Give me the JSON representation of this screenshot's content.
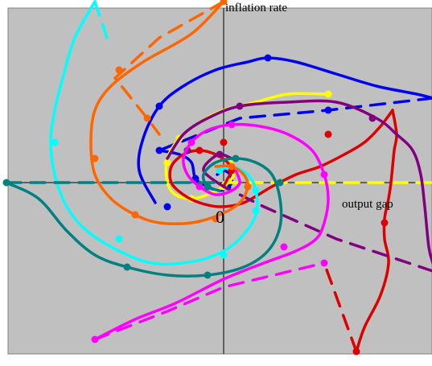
{
  "chart_data": {
    "type": "line",
    "xlabel": "output gap",
    "ylabel": "inflation rate",
    "origin_label": "0",
    "xlim": [
      -270,
      260
    ],
    "ylim": [
      -195,
      225
    ],
    "grid": false,
    "legend": "none",
    "background": "#c0c0c0",
    "series": [
      {
        "color": "#0000ee",
        "solid": [
          [
            -85,
            -25
          ],
          [
            -105,
            15
          ],
          [
            -100,
            55
          ],
          [
            -80,
            95
          ],
          [
            -50,
            120
          ],
          [
            -10,
            140
          ],
          [
            30,
            150
          ],
          [
            55,
            155
          ],
          [
            90,
            150
          ],
          [
            140,
            135
          ],
          [
            190,
            120
          ],
          [
            240,
            110
          ],
          [
            260,
            105
          ]
        ],
        "dashed": [
          [
            260,
            105
          ],
          [
            130,
            90
          ],
          [
            20,
            80
          ],
          [
            -80,
            40
          ]
        ],
        "spiral": [
          [
            -80,
            40
          ],
          [
            -55,
            35
          ],
          [
            -40,
            25
          ],
          [
            -35,
            5
          ],
          [
            -20,
            -5
          ],
          [
            -5,
            -10
          ],
          [
            5,
            -5
          ],
          [
            10,
            0
          ],
          [
            8,
            10
          ],
          [
            0,
            15
          ],
          [
            -8,
            10
          ]
        ],
        "markers": [
          [
            -80,
            95
          ],
          [
            55,
            155
          ],
          [
            130,
            90
          ],
          [
            -80,
            40
          ],
          [
            -35,
            5
          ],
          [
            -20,
            -5
          ],
          [
            5,
            -5
          ],
          [
            -70,
            -30
          ]
        ]
      },
      {
        "color": "#ffff00",
        "solid": [
          [
            130,
            110
          ],
          [
            80,
            110
          ],
          [
            40,
            100
          ],
          [
            0,
            90
          ],
          [
            -30,
            75
          ],
          [
            -55,
            55
          ],
          [
            -70,
            30
          ],
          [
            -70,
            0
          ],
          [
            -60,
            -15
          ],
          [
            -40,
            -20
          ],
          [
            -20,
            -15
          ],
          [
            0,
            -5
          ],
          [
            10,
            5
          ],
          [
            15,
            15
          ]
        ],
        "dashed": [
          [
            0,
            0
          ],
          [
            260,
            0
          ]
        ],
        "spiral": [
          [
            15,
            15
          ],
          [
            10,
            25
          ],
          [
            0,
            30
          ],
          [
            -10,
            25
          ]
        ],
        "markers": [
          [
            130,
            110
          ],
          [
            -55,
            55
          ],
          [
            -70,
            25
          ],
          [
            -40,
            -20
          ],
          [
            0,
            -5
          ]
        ]
      },
      {
        "color": "#dd0000",
        "solid": [
          [
            0,
            -5
          ],
          [
            5,
            5
          ],
          [
            10,
            15
          ],
          [
            5,
            25
          ],
          [
            -10,
            35
          ],
          [
            -30,
            40
          ],
          [
            -50,
            35
          ],
          [
            -65,
            20
          ],
          [
            -65,
            0
          ],
          [
            -50,
            -15
          ],
          [
            -30,
            -25
          ],
          [
            -5,
            -30
          ],
          [
            25,
            -25
          ],
          [
            60,
            -5
          ],
          [
            90,
            10
          ],
          [
            120,
            20
          ],
          [
            150,
            35
          ],
          [
            175,
            50
          ],
          [
            195,
            70
          ],
          [
            210,
            90
          ]
        ],
        "tail": [
          [
            210,
            90
          ],
          [
            215,
            60
          ],
          [
            212,
            40
          ],
          [
            210,
            20
          ],
          [
            208,
            0
          ],
          [
            205,
            -20
          ],
          [
            200,
            -45
          ],
          [
            200,
            -70
          ],
          [
            205,
            -100
          ],
          [
            195,
            -140
          ],
          [
            175,
            -180
          ],
          [
            165,
            -210
          ]
        ],
        "dashed": [
          [
            165,
            -210
          ],
          [
            125,
            -100
          ]
        ],
        "markers": [
          [
            0,
            50
          ],
          [
            130,
            60
          ],
          [
            200,
            -50
          ],
          [
            165,
            -210
          ],
          [
            10,
            15
          ],
          [
            -30,
            40
          ]
        ]
      },
      {
        "color": "#800080",
        "solid": [
          [
            -70,
            30
          ],
          [
            -50,
            60
          ],
          [
            -20,
            80
          ],
          [
            20,
            95
          ],
          [
            80,
            100
          ],
          [
            140,
            100
          ],
          [
            190,
            80
          ],
          [
            215,
            60
          ],
          [
            235,
            40
          ],
          [
            245,
            10
          ],
          [
            250,
            -30
          ],
          [
            255,
            -80
          ],
          [
            260,
            -100
          ]
        ],
        "dashed": [
          [
            260,
            -110
          ],
          [
            140,
            -70
          ],
          [
            50,
            -30
          ],
          [
            0,
            -5
          ]
        ],
        "spiral": [
          [
            0,
            -5
          ],
          [
            -15,
            5
          ],
          [
            -25,
            15
          ],
          [
            -20,
            25
          ],
          [
            -5,
            35
          ],
          [
            10,
            30
          ]
        ],
        "markers": [
          [
            20,
            95
          ],
          [
            185,
            80
          ],
          [
            -45,
            40
          ],
          [
            -5,
            35
          ]
        ]
      },
      {
        "color": "#ff00ff",
        "solid": [
          [
            -160,
            -195
          ],
          [
            -110,
            -170
          ],
          [
            -60,
            -150
          ],
          [
            0,
            -120
          ],
          [
            50,
            -100
          ],
          [
            90,
            -85
          ],
          [
            115,
            -70
          ],
          [
            125,
            -50
          ],
          [
            130,
            -20
          ],
          [
            125,
            10
          ],
          [
            110,
            40
          ],
          [
            80,
            60
          ],
          [
            45,
            70
          ],
          [
            10,
            72
          ],
          [
            -20,
            65
          ],
          [
            -40,
            50
          ],
          [
            -50,
            30
          ],
          [
            -45,
            10
          ],
          [
            -30,
            -5
          ],
          [
            -10,
            -15
          ],
          [
            10,
            -10
          ],
          [
            20,
            0
          ],
          [
            15,
            15
          ]
        ],
        "dashed": [
          [
            -160,
            -195
          ],
          [
            -70,
            -160
          ],
          [
            0,
            -130
          ],
          [
            125,
            -100
          ]
        ],
        "markers": [
          [
            -160,
            -195
          ],
          [
            125,
            -100
          ],
          [
            75,
            -80
          ],
          [
            125,
            10
          ],
          [
            10,
            72
          ],
          [
            -40,
            50
          ],
          [
            -30,
            -5
          ]
        ]
      },
      {
        "color": "#00ffff",
        "solid": [
          [
            -160,
            225
          ],
          [
            -185,
            180
          ],
          [
            -200,
            130
          ],
          [
            -210,
            90
          ],
          [
            -215,
            50
          ],
          [
            -210,
            10
          ],
          [
            -195,
            -30
          ],
          [
            -170,
            -60
          ],
          [
            -130,
            -85
          ],
          [
            -90,
            -100
          ],
          [
            -50,
            -100
          ],
          [
            -10,
            -90
          ],
          [
            20,
            -70
          ],
          [
            40,
            -40
          ],
          [
            40,
            -10
          ],
          [
            30,
            10
          ],
          [
            10,
            20
          ],
          [
            -5,
            15
          ]
        ],
        "dashed": [
          [
            -160,
            225
          ],
          [
            -145,
            180
          ]
        ],
        "markers": [
          [
            -210,
            50
          ],
          [
            -130,
            -70
          ],
          [
            0,
            -90
          ],
          [
            40,
            -35
          ],
          [
            40,
            -10
          ],
          [
            -5,
            15
          ]
        ]
      },
      {
        "color": "#008080",
        "solid": [
          [
            -270,
            0
          ],
          [
            -230,
            -20
          ],
          [
            -195,
            -60
          ],
          [
            -160,
            -90
          ],
          [
            -120,
            -105
          ],
          [
            -70,
            -115
          ],
          [
            -20,
            -115
          ],
          [
            25,
            -105
          ],
          [
            55,
            -85
          ],
          [
            70,
            -55
          ],
          [
            70,
            -20
          ],
          [
            60,
            10
          ],
          [
            40,
            25
          ],
          [
            15,
            30
          ],
          [
            -10,
            25
          ],
          [
            -25,
            10
          ],
          [
            -20,
            -5
          ],
          [
            -5,
            -10
          ]
        ],
        "dashed": [
          [
            -270,
            0
          ],
          [
            0,
            0
          ]
        ],
        "markers": [
          [
            -270,
            0
          ],
          [
            -120,
            -105
          ],
          [
            -20,
            -115
          ],
          [
            70,
            0
          ],
          [
            15,
            30
          ],
          [
            -20,
            -5
          ]
        ]
      },
      {
        "color": "#ff6600",
        "solid": [
          [
            0,
            225
          ],
          [
            -40,
            185
          ],
          [
            -100,
            150
          ],
          [
            -140,
            120
          ],
          [
            -160,
            90
          ],
          [
            -165,
            50
          ],
          [
            -160,
            10
          ],
          [
            -140,
            -20
          ],
          [
            -110,
            -40
          ],
          [
            -80,
            -50
          ],
          [
            -40,
            -50
          ],
          [
            -5,
            -40
          ],
          [
            20,
            -25
          ],
          [
            30,
            -5
          ],
          [
            25,
            10
          ],
          [
            10,
            20
          ],
          [
            -10,
            20
          ]
        ],
        "dashed": [
          [
            0,
            225
          ],
          [
            -80,
            180
          ],
          [
            -135,
            130
          ],
          [
            -95,
            80
          ],
          [
            -80,
            60
          ]
        ],
        "markers": [
          [
            0,
            225
          ],
          [
            -130,
            140
          ],
          [
            -95,
            80
          ],
          [
            -160,
            30
          ],
          [
            -110,
            -40
          ],
          [
            -10,
            -45
          ],
          [
            30,
            -5
          ],
          [
            10,
            20
          ]
        ]
      }
    ]
  }
}
